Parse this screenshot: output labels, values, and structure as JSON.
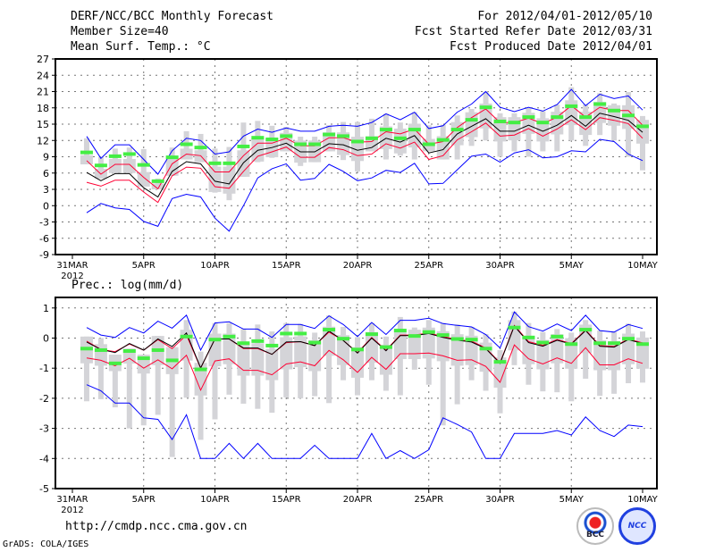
{
  "header": {
    "left": [
      "DERF/NCC/BCC Monthly Forecast",
      "Member Size=40",
      "Mean Surf. Temp.: °C"
    ],
    "right": [
      "For 2012/04/01-2012/05/10",
      "Fcst Started Refer Date 2012/03/31",
      "Fcst Produced Date 2012/04/01"
    ]
  },
  "footer": {
    "url": "http://cmdp.ncc.cma.gov.cn",
    "grads": "GrADS: COLA/IGES",
    "logo_left": "BCC",
    "logo_right": "NCC"
  },
  "colors": {
    "max_min": "#0000ff",
    "spread": "#ff0033",
    "mean": "#000000",
    "observed": "#44ee44",
    "range_box": "#d4d4d8"
  },
  "chart_data": [
    {
      "type": "line",
      "title": "Mean Surf. Temp.: °C",
      "x_start": "2012-04-01",
      "xticks": [
        {
          "day": 0,
          "label": "31MAR",
          "sub": "2012"
        },
        {
          "day": 5,
          "label": "5APR"
        },
        {
          "day": 10,
          "label": "10APR"
        },
        {
          "day": 15,
          "label": "15APR"
        },
        {
          "day": 20,
          "label": "20APR"
        },
        {
          "day": 25,
          "label": "25APR"
        },
        {
          "day": 30,
          "label": "30APR"
        },
        {
          "day": 35,
          "label": "5MAY"
        },
        {
          "day": 40,
          "label": "10MAY"
        }
      ],
      "ylim": [
        -9,
        27
      ],
      "yticks": [
        -9,
        -6,
        -3,
        0,
        3,
        6,
        9,
        12,
        15,
        18,
        21,
        24,
        27
      ],
      "grid": true,
      "series": [
        {
          "name": "max",
          "values": [
            12.75,
            8.7,
            11.2,
            11.2,
            8.5,
            5.8,
            10.1,
            12.4,
            12.0,
            9.5,
            9.9,
            12.8,
            14.1,
            13.5,
            14.3,
            13.7,
            13.7,
            14.6,
            14.8,
            14.6,
            15.3,
            16.9,
            15.8,
            17.2,
            14.2,
            14.7,
            17.2,
            18.7,
            21.0,
            18.1,
            17.3,
            18.1,
            17.4,
            18.6,
            21.4,
            18.4,
            20.5,
            19.7,
            20.2,
            17.6
          ]
        },
        {
          "name": "upper",
          "values": [
            8.3,
            5.8,
            7.6,
            7.6,
            5.2,
            3.1,
            7.7,
            9.5,
            9.2,
            6.2,
            6.2,
            9.2,
            11.5,
            11.5,
            12.4,
            11.0,
            11.0,
            12.5,
            12.5,
            11.7,
            11.8,
            13.6,
            13.2,
            14.1,
            11.3,
            11.8,
            14.4,
            16.2,
            17.8,
            15.3,
            15.3,
            16.1,
            15.1,
            16.3,
            18.4,
            16.3,
            18.1,
            17.5,
            17.5,
            14.8
          ]
        },
        {
          "name": "mean",
          "values": [
            6.1,
            4.6,
            5.9,
            5.9,
            3.3,
            1.6,
            6.3,
            8.1,
            7.7,
            4.5,
            4.0,
            7.9,
            10.2,
            10.7,
            11.5,
            9.9,
            9.9,
            11.4,
            11.2,
            10.2,
            10.7,
            12.4,
            11.7,
            12.9,
            9.7,
            10.3,
            13.2,
            14.6,
            16.0,
            13.7,
            13.7,
            14.8,
            13.7,
            14.8,
            16.6,
            14.6,
            17.0,
            16.4,
            15.7,
            13.5
          ]
        },
        {
          "name": "lower",
          "values": [
            4.3,
            3.6,
            4.7,
            4.7,
            2.5,
            0.6,
            5.5,
            7.1,
            6.9,
            3.5,
            3.2,
            6.3,
            9.1,
            9.9,
            10.8,
            8.9,
            8.9,
            10.7,
            10.3,
            9.2,
            9.5,
            11.4,
            10.6,
            11.7,
            8.5,
            9.2,
            12.1,
            13.6,
            15.2,
            12.8,
            13.0,
            14.2,
            12.8,
            14.1,
            15.8,
            14.0,
            16.2,
            15.7,
            15.1,
            12.4
          ]
        },
        {
          "name": "min",
          "values": [
            -1.3,
            0.4,
            -0.4,
            -0.7,
            -2.9,
            -3.8,
            1.3,
            2.1,
            1.6,
            -2.3,
            -4.7,
            0.0,
            5.1,
            6.8,
            7.7,
            4.7,
            5.0,
            7.6,
            6.3,
            4.6,
            5.1,
            6.5,
            6.1,
            7.8,
            4.0,
            4.1,
            6.6,
            9.1,
            9.5,
            8.0,
            9.7,
            10.3,
            8.8,
            9.0,
            10.1,
            9.9,
            12.2,
            11.8,
            9.5,
            8.3
          ]
        },
        {
          "name": "observed",
          "values": [
            9.8,
            7.4,
            9.1,
            9.5,
            7.5,
            4.5,
            8.9,
            11.3,
            10.7,
            7.8,
            7.8,
            10.9,
            12.5,
            12.2,
            12.8,
            11.3,
            11.3,
            13.1,
            12.8,
            11.8,
            12.4,
            14.0,
            12.4,
            14.0,
            11.3,
            12.1,
            14.0,
            15.8,
            18.1,
            15.5,
            15.3,
            16.3,
            15.3,
            16.3,
            18.3,
            16.3,
            18.7,
            17.5,
            16.6,
            14.6
          ]
        },
        {
          "name": "range_low",
          "values": [
            7.6,
            5.0,
            6.0,
            6.0,
            3.5,
            3.0,
            5.5,
            8.5,
            8.0,
            2.4,
            1.0,
            5.3,
            8.0,
            8.8,
            10.0,
            7.3,
            8.0,
            10.0,
            8.4,
            6.3,
            10.0,
            8.5,
            9.2,
            8.5,
            10.0,
            8.5,
            8.5,
            11.0,
            12.0,
            9.0,
            10.0,
            9.0,
            10.0,
            10.0,
            12.0,
            11.0,
            13.0,
            12.0,
            9.0,
            6.5
          ]
        },
        {
          "name": "range_high",
          "values": [
            12.4,
            9.0,
            10.5,
            10.7,
            10.4,
            5.0,
            10.7,
            13.7,
            13.2,
            10.5,
            10.8,
            15.3,
            15.6,
            14.7,
            14.5,
            12.7,
            12.7,
            14.8,
            15.4,
            15.4,
            16.0,
            16.9,
            15.3,
            17.2,
            14.8,
            14.9,
            16.6,
            17.8,
            21.0,
            17.0,
            17.0,
            18.0,
            17.4,
            18.6,
            21.8,
            18.6,
            20.7,
            18.8,
            20.9,
            16.5
          ]
        }
      ]
    },
    {
      "type": "line",
      "title": "Prec.: log(mm/d)",
      "x_start": "2012-04-01",
      "xticks": [
        {
          "day": 0,
          "label": "31MAR",
          "sub": "2012"
        },
        {
          "day": 5,
          "label": "5APR"
        },
        {
          "day": 10,
          "label": "10APR"
        },
        {
          "day": 15,
          "label": "15APR"
        },
        {
          "day": 20,
          "label": "20APR"
        },
        {
          "day": 25,
          "label": "25APR"
        },
        {
          "day": 30,
          "label": "30APR"
        },
        {
          "day": 35,
          "label": "5MAY"
        },
        {
          "day": 40,
          "label": "10MAY"
        }
      ],
      "ylim": [
        -5,
        1.35
      ],
      "yticks": [
        -5,
        -4,
        -3,
        -2,
        -1,
        0,
        1
      ],
      "grid": true,
      "series": [
        {
          "name": "max",
          "values": [
            0.35,
            0.1,
            0.02,
            0.35,
            0.17,
            0.56,
            0.33,
            0.76,
            -0.4,
            0.5,
            0.54,
            0.3,
            0.3,
            0.02,
            0.45,
            0.45,
            0.32,
            0.74,
            0.45,
            0.05,
            0.52,
            0.12,
            0.59,
            0.59,
            0.66,
            0.48,
            0.42,
            0.37,
            0.12,
            -0.33,
            0.87,
            0.38,
            0.23,
            0.47,
            0.25,
            0.76,
            0.25,
            0.2,
            0.45,
            0.32
          ]
        },
        {
          "name": "upper",
          "values": [
            -0.1,
            -0.38,
            -0.45,
            -0.2,
            -0.4,
            -0.05,
            -0.35,
            0.1,
            -1.0,
            -0.03,
            -0.03,
            -0.35,
            -0.35,
            -0.54,
            -0.15,
            -0.12,
            -0.25,
            0.2,
            -0.08,
            -0.48,
            0.02,
            -0.4,
            0.1,
            0.1,
            0.17,
            0.05,
            -0.05,
            -0.1,
            -0.33,
            -0.82,
            0.42,
            -0.12,
            -0.24,
            -0.05,
            -0.18,
            0.27,
            -0.25,
            -0.28,
            -0.03,
            -0.16
          ]
        },
        {
          "name": "mean",
          "values": [
            -0.13,
            -0.38,
            -0.48,
            -0.18,
            -0.4,
            -0.03,
            -0.28,
            0.17,
            -0.99,
            -0.03,
            -0.03,
            -0.33,
            -0.33,
            -0.54,
            -0.13,
            -0.12,
            -0.25,
            0.23,
            -0.08,
            -0.5,
            0,
            -0.42,
            0.08,
            0.08,
            0.15,
            0.02,
            -0.07,
            -0.13,
            -0.35,
            -0.84,
            0.4,
            -0.15,
            -0.27,
            -0.07,
            -0.2,
            0.25,
            -0.27,
            -0.3,
            -0.05,
            -0.18
          ]
        },
        {
          "name": "lower",
          "values": [
            -0.66,
            -0.74,
            -0.92,
            -0.67,
            -1.0,
            -0.72,
            -1.02,
            -0.57,
            -1.73,
            -0.76,
            -0.69,
            -1.07,
            -1.07,
            -1.22,
            -0.86,
            -0.79,
            -0.92,
            -0.41,
            -0.72,
            -1.14,
            -0.64,
            -1.04,
            -0.52,
            -0.52,
            -0.5,
            -0.59,
            -0.74,
            -0.72,
            -0.94,
            -1.47,
            -0.23,
            -0.69,
            -0.86,
            -0.66,
            -0.84,
            -0.32,
            -0.89,
            -0.89,
            -0.69,
            -0.84
          ]
        },
        {
          "name": "min",
          "values": [
            -1.55,
            -1.75,
            -2.16,
            -2.16,
            -2.65,
            -2.7,
            -3.37,
            -2.55,
            -4,
            -4,
            -3.5,
            -4,
            -3.5,
            -4,
            -4,
            -4,
            -3.56,
            -4,
            -4,
            -4,
            -3.17,
            -4,
            -3.74,
            -4,
            -3.71,
            -2.65,
            -2.87,
            -3.12,
            -4,
            -4,
            -3.17,
            -3.17,
            -3.17,
            -3.07,
            -3.22,
            -2.62,
            -3.07,
            -3.27,
            -2.89,
            -2.94
          ]
        },
        {
          "name": "observed",
          "values": [
            -0.35,
            -0.4,
            -0.84,
            -0.43,
            -0.67,
            -0.4,
            -0.74,
            0.05,
            -1.04,
            -0.05,
            0.05,
            -0.17,
            -0.1,
            -0.25,
            0.15,
            0.15,
            -0.15,
            0.28,
            -0.02,
            -0.38,
            0.13,
            -0.3,
            0.25,
            0.07,
            0.2,
            0.1,
            -0.03,
            -0.05,
            -0.35,
            -0.79,
            0.35,
            0.02,
            -0.15,
            0.05,
            -0.2,
            0.28,
            -0.17,
            -0.17,
            -0.02,
            -0.2
          ]
        },
        {
          "name": "range_low",
          "values": [
            -2.1,
            -2.03,
            -2.3,
            -3.0,
            -2.9,
            -2.55,
            -3.95,
            -1.98,
            -3.38,
            -2.7,
            -1.88,
            -2.18,
            -2.35,
            -2.48,
            -1.97,
            -2.0,
            -1.93,
            -2.16,
            -1.4,
            -1.9,
            -1.4,
            -1.75,
            -1.9,
            -1.05,
            -1.55,
            -2.9,
            -2.2,
            -1.4,
            -1.75,
            -2.5,
            -0.9,
            -1.55,
            -1.77,
            -1.8,
            -2.1,
            -1.35,
            -1.92,
            -1.85,
            -1.5,
            -1.48
          ]
        },
        {
          "name": "range_high",
          "values": [
            0.05,
            0,
            -0.55,
            -0.35,
            -0.55,
            0.07,
            -0.3,
            0.6,
            -0.45,
            0.5,
            0.5,
            0.3,
            0.45,
            0.22,
            0.5,
            0.47,
            0.18,
            0.75,
            0.37,
            0.03,
            0.5,
            0.05,
            0.7,
            0.35,
            0.6,
            0.5,
            0.45,
            0.37,
            0.13,
            -0.4,
            0.88,
            0.5,
            0.2,
            0.3,
            0.18,
            0.6,
            0.25,
            0.2,
            0.48,
            0.22
          ]
        }
      ]
    }
  ]
}
